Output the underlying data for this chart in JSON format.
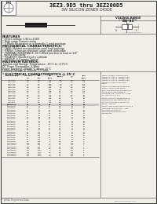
{
  "title_main": "3EZ3.9D5 thru 3EZ200D5",
  "title_sub": "3W SILICON ZENER DIODE",
  "bg_color": "#f2efe9",
  "voltage_range_label": "VOLTAGE RANGE",
  "voltage_range_value": "3.9 to 200 Volts",
  "features_title": "FEATURES",
  "features": [
    "* Zener voltage 3.9V to 200V",
    "* High surge current rating",
    "* 3 Watts dissipation in a normally 1 watt package"
  ],
  "mech_title": "MECHANICAL CHARACTERISTICS:",
  "mech_items": [
    "* CASE: Molded encapsulation axial lead package",
    "* FINISH: Corrosion resistant Leads and solderable",
    "* THERMAL RESISTANCE: 41°C/Watt Junction to lead at 3/8\"",
    "  inches from body",
    "* POLARITY: Banded end is cathode",
    "* WEIGHT: 0.4 grams Typical"
  ],
  "max_title": "MAXIMUM RATINGS:",
  "max_items": [
    "Junction and Storage Temperature: -65°C to +175°C",
    "DC Power Dissipation: 3 Watt",
    "Power Derating: 20mW/°C above 25°C",
    "Forward Voltage @ 200mA: 1.2 Volts"
  ],
  "elec_title": "* ELECTRICAL CHARACTERISTICS @ 25°C",
  "table_data": [
    [
      "3EZ3.9D5",
      "3.9",
      "9.5",
      "370",
      "1.0",
      "3.9",
      "200"
    ],
    [
      "3EZ4.3D5",
      "4.3",
      "9.0",
      "330",
      "1.0",
      "4.3",
      "175"
    ],
    [
      "3EZ4.7D5",
      "4.7",
      "8.0",
      "300",
      "1.0",
      "4.7",
      "160"
    ],
    [
      "3EZ5.1D5",
      "5.1",
      "7.0",
      "280",
      "1.0",
      "5.1",
      "150"
    ],
    [
      "3EZ5.6D5",
      "5.6",
      "5.0",
      "250",
      "1.0",
      "5.6",
      "130"
    ],
    [
      "3EZ6.2D5",
      "6.2",
      "2.0",
      "230",
      "5.0",
      "6.2",
      "120"
    ],
    [
      "3EZ6.8D5",
      "6.8",
      "2.0",
      "210",
      "5.0",
      "6.8",
      "110"
    ],
    [
      "3EZ7.5D5",
      "7.5",
      "3.0",
      "190",
      "5.0",
      "7.5",
      "100"
    ],
    [
      "3EZ8.2D5",
      "8.2",
      "4.0",
      "170",
      "5.0",
      "8.2",
      "90"
    ],
    [
      "3EZ9.1D5",
      "9.1",
      "5.0",
      "155",
      "5.0",
      "9.1",
      "85"
    ],
    [
      "3EZ10D5",
      "10",
      "7.0",
      "140",
      "5.0",
      "10",
      "75"
    ],
    [
      "3EZ11D5",
      "11",
      "8.0",
      "125",
      "5.0",
      "11",
      "70"
    ],
    [
      "3EZ12D5",
      "12",
      "9.0",
      "115",
      "5.0",
      "12",
      "65"
    ],
    [
      "3EZ13D10",
      "13",
      "10",
      "58",
      "5.0",
      "13",
      "60"
    ],
    [
      "3EZ15D10",
      "15",
      "14",
      "50",
      "5.0",
      "15",
      "55"
    ],
    [
      "3EZ16D10",
      "16",
      "16",
      "47",
      "5.0",
      "16",
      "50"
    ],
    [
      "3EZ18D10",
      "18",
      "20",
      "42",
      "5.0",
      "18",
      "45"
    ],
    [
      "3EZ20D10",
      "20",
      "22",
      "37",
      "5.0",
      "20",
      "40"
    ],
    [
      "3EZ22D10",
      "22",
      "23",
      "34",
      "5.0",
      "22",
      "37"
    ],
    [
      "3EZ24D10",
      "24",
      "25",
      "31",
      "5.0",
      "24",
      "34"
    ],
    [
      "3EZ27D10",
      "27",
      "35",
      "28",
      "5.0",
      "27",
      "30"
    ],
    [
      "3EZ30D10",
      "30",
      "40",
      "25",
      "5.0",
      "30",
      "27"
    ],
    [
      "3EZ33D10",
      "33",
      "45",
      "23",
      "5.0",
      "33",
      "25"
    ],
    [
      "3EZ36D10",
      "36",
      "50",
      "21",
      "5.0",
      "36",
      "22"
    ],
    [
      "3EZ39D10",
      "39",
      "60",
      "19",
      "5.0",
      "39",
      "20"
    ],
    [
      "3EZ43D10",
      "43",
      "70",
      "17",
      "5.0",
      "43",
      "18"
    ],
    [
      "3EZ47D10",
      "47",
      "80",
      "15",
      "5.0",
      "47",
      "17"
    ],
    [
      "3EZ51D10",
      "51",
      "95",
      "14",
      "5.0",
      "51",
      "15"
    ],
    [
      "3EZ56D10",
      "56",
      "110",
      "13",
      "5.0",
      "56",
      "14"
    ],
    [
      "3EZ62D10",
      "62",
      "125",
      "12",
      "5.0",
      "62",
      "13"
    ],
    [
      "3EZ68D10",
      "68",
      "150",
      "11",
      "5.0",
      "68",
      "12"
    ],
    [
      "3EZ75D10",
      "75",
      "175",
      "10",
      "5.0",
      "75",
      "11"
    ],
    [
      "3EZ82D10",
      "82",
      "200",
      "9",
      "5.0",
      "82",
      "10"
    ],
    [
      "3EZ91D10",
      "91",
      "250",
      "8",
      "5.0",
      "91",
      "9"
    ],
    [
      "3EZ100D10",
      "100",
      "350",
      "7",
      "5.0",
      "100",
      "8"
    ],
    [
      "3EZ110D10",
      "110",
      "450",
      "6.5",
      "5.0",
      "110",
      "7"
    ],
    [
      "3EZ120D10",
      "120",
      "600",
      "6",
      "5.0",
      "120",
      "7"
    ],
    [
      "3EZ130D10",
      "130",
      "700",
      "5.5",
      "5.0",
      "130",
      "6"
    ],
    [
      "3EZ150D10",
      "150",
      "1000",
      "5",
      "5.0",
      "150",
      "5"
    ],
    [
      "3EZ160D10",
      "160",
      "1100",
      "4.5",
      "5.0",
      "160",
      "5"
    ],
    [
      "3EZ180D10",
      "180",
      "1300",
      "4",
      "5.0",
      "180",
      "5"
    ],
    [
      "3EZ200D10",
      "200",
      "1500",
      "3.8",
      "5.0",
      "200",
      "5"
    ]
  ],
  "highlight_part": "3EZ13D10",
  "footnote": "* JEDEC Registered Data",
  "note1": "NOTE 1: Suffix 1 indicates ±1% tolerance. Suffix 2 indicates ±2% tolerance. Suffix 5 indicates ±5% tolerance. Suffix 8 indicates ±8% tolerance. Suffix 10 indicates ±10%.",
  "note2": "NOTE 2: Is measured for aging to along 0.1Vrms prime sinarg. Mounting conditions are based 3/8\" to 1.5\" from chassis edge of mounting ring = 260 s ± 1°C, deg. O = 260 s ± 1°C, 2°C.",
  "note3": "NOTE 3: Junction Temperature, ZA measured for manufacturing 1 at P(60) at 60 fm am fy, where 1 at P(60) = 10% fAL",
  "note4": "NOTE 4: Maximum surge current is a repetitively pulse circuit = 1ms 50% duty circle with 5 maximum-pulse width of 8.3 milliseconds",
  "text_color": "#1a1a1a"
}
